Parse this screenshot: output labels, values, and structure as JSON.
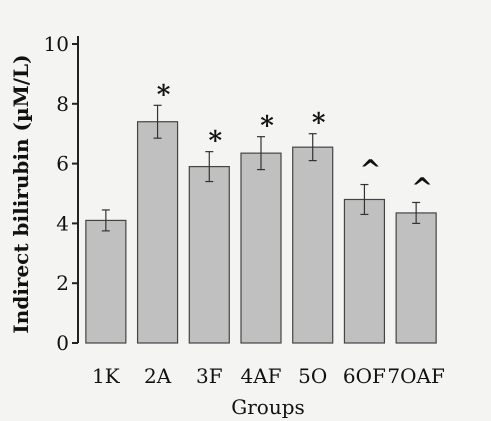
{
  "chart_data": {
    "type": "bar",
    "categories": [
      "1K",
      "2A",
      "3F",
      "4AF",
      "5O",
      "6OF",
      "7OAF"
    ],
    "values": [
      4.1,
      7.4,
      5.9,
      6.35,
      6.55,
      4.8,
      4.35
    ],
    "errors": [
      0.35,
      0.55,
      0.5,
      0.55,
      0.45,
      0.5,
      0.35
    ],
    "markers": [
      "",
      "*",
      "*",
      "*",
      "*",
      "^",
      "^"
    ],
    "xlabel": "Groups",
    "ylabel": "Indirect bilirubin (µM/L)",
    "ylim": [
      0,
      10
    ],
    "yticks": [
      0,
      2,
      4,
      6,
      8,
      10
    ],
    "bar_color": "#c0c0c0",
    "edge_color": "#444444"
  }
}
